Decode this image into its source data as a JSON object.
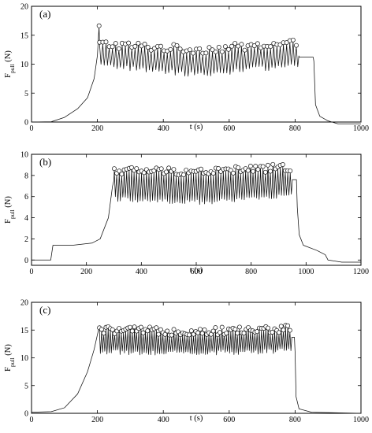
{
  "chart_data": [
    {
      "panel_label": "(a)",
      "type": "line",
      "xlabel": "t (s)",
      "ylabel_main": "F",
      "ylabel_sub": "pull",
      "ylabel_unit": " (N)",
      "xlim": [
        0,
        1000
      ],
      "ylim": [
        0,
        20
      ],
      "xticks": [
        0,
        200,
        400,
        600,
        800,
        1000
      ],
      "yticks": [
        0,
        5,
        10,
        15,
        20
      ],
      "grid": false,
      "legend": "none",
      "series": [
        {
          "baseline_points": [
            [
              0,
              0
            ],
            [
              60,
              0.05
            ],
            [
              100,
              0.8
            ],
            [
              140,
              2.3
            ],
            [
              170,
              4.2
            ],
            [
              190,
              7.5
            ],
            [
              200,
              11.5
            ],
            [
              205,
              16.5
            ]
          ],
          "sawtooth": {
            "t_start": 205,
            "t_end": 812,
            "peak_start": 13.2,
            "peak_mid": 12.2,
            "peak_end": 13.3,
            "trough_start": 10.2,
            "trough_mid": 8.6,
            "trough_end": 10.3,
            "n_cycles": 62
          },
          "tail_points": [
            [
              812,
              11.2
            ],
            [
              855,
              11.2
            ],
            [
              857,
              10.5
            ],
            [
              862,
              3.0
            ],
            [
              875,
              1.0
            ],
            [
              900,
              0.2
            ],
            [
              930,
              -0.3
            ],
            [
              1000,
              -0.3
            ]
          ]
        }
      ],
      "markers": "open circles at each load peak"
    },
    {
      "panel_label": "(b)",
      "type": "line",
      "xlabel": "t (s)",
      "ylabel_main": "F",
      "ylabel_sub": "pull",
      "ylabel_unit": " (N)",
      "xlim": [
        0,
        1200
      ],
      "ylim": [
        -0.5,
        10
      ],
      "xticks": [
        0,
        200,
        400,
        600,
        800,
        1000,
        1200
      ],
      "yticks": [
        0,
        2,
        4,
        6,
        8,
        10
      ],
      "grid": false,
      "legend": "none",
      "series": [
        {
          "baseline_points": [
            [
              0,
              0
            ],
            [
              70,
              0
            ],
            [
              78,
              1.4
            ],
            [
              150,
              1.4
            ],
            [
              220,
              1.6
            ],
            [
              250,
              2.0
            ],
            [
              280,
              4.0
            ],
            [
              295,
              7.0
            ],
            [
              300,
              7.5
            ]
          ],
          "sawtooth": {
            "t_start": 300,
            "t_end": 950,
            "peak_start": 8.3,
            "peak_mid": 8.2,
            "peak_end": 8.6,
            "trough_start": 6.0,
            "trough_mid": 5.7,
            "trough_end": 6.4,
            "n_cycles": 72
          },
          "tail_points": [
            [
              950,
              7.6
            ],
            [
              965,
              7.6
            ],
            [
              968,
              5.0
            ],
            [
              975,
              2.4
            ],
            [
              990,
              1.4
            ],
            [
              1040,
              0.9
            ],
            [
              1070,
              0.5
            ],
            [
              1080,
              0.0
            ],
            [
              1130,
              -0.2
            ],
            [
              1200,
              -0.2
            ]
          ]
        }
      ],
      "markers": "open circles at each load peak"
    },
    {
      "panel_label": "(c)",
      "type": "line",
      "xlabel": "t (s)",
      "ylabel_main": "F",
      "ylabel_sub": "pull",
      "ylabel_unit": " (N)",
      "xlim": [
        0,
        1000
      ],
      "ylim": [
        0,
        20
      ],
      "xticks": [
        0,
        200,
        400,
        600,
        800,
        1000
      ],
      "yticks": [
        0,
        5,
        10,
        15,
        20
      ],
      "grid": false,
      "legend": "none",
      "series": [
        {
          "baseline_points": [
            [
              0,
              0.2
            ],
            [
              60,
              0.3
            ],
            [
              100,
              1.0
            ],
            [
              140,
              3.5
            ],
            [
              170,
              7.5
            ],
            [
              190,
              11.5
            ],
            [
              205,
              15.5
            ]
          ],
          "sawtooth": {
            "t_start": 205,
            "t_end": 790,
            "peak_start": 14.7,
            "peak_mid": 14.4,
            "peak_end": 14.9,
            "trough_start": 11.5,
            "trough_mid": 11.3,
            "trough_end": 11.7,
            "n_cycles": 88
          },
          "tail_points": [
            [
              790,
              13.7
            ],
            [
              798,
              13.7
            ],
            [
              800,
              11.0
            ],
            [
              803,
              3.0
            ],
            [
              812,
              0.8
            ],
            [
              850,
              0.2
            ],
            [
              1000,
              0.0
            ]
          ]
        }
      ],
      "markers": "open circles at each load peak"
    }
  ]
}
